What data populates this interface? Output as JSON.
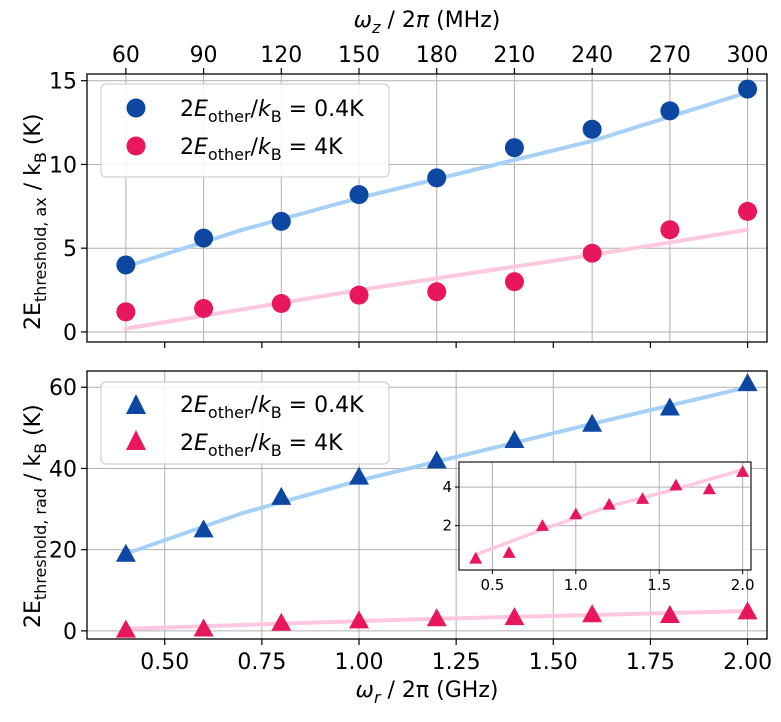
{
  "chart_data": [
    {
      "type": "scatter",
      "panel": "top",
      "x_label_bottom": "ω_r / 2π (GHz)",
      "x_label_top": "ω_z / 2π (MHz)",
      "top_ticks": [
        60,
        90,
        120,
        150,
        180,
        210,
        240,
        270,
        300
      ],
      "ylabel": "2E_threshold,ax / k_B (K)",
      "ylabel_main": "2E",
      "ylabel_sub": "threshold, ax",
      "ylabel_rest": " / k",
      "ylabel_sub2": "B",
      "ylabel_tail": " (K)",
      "xlim": [
        0.3,
        2.05
      ],
      "ylim": [
        -0.6,
        15.4
      ],
      "yticks": [
        0,
        5,
        10,
        15
      ],
      "grid": true,
      "legend_position": "top-left",
      "series": [
        {
          "name": "2E_other/k_B = 0.4K",
          "legend_label": "2Eother/kB = 0.4K",
          "marker": "circle",
          "color": "#0d47a1",
          "x": [
            0.4,
            0.6,
            0.8,
            1.0,
            1.2,
            1.4,
            1.6,
            1.8,
            2.0
          ],
          "values": [
            4.0,
            5.6,
            6.6,
            8.2,
            9.2,
            11.0,
            12.1,
            13.2,
            14.5
          ],
          "fit": {
            "color": "#a6d0f5",
            "x": [
              0.4,
              0.7,
              1.0,
              1.3,
              1.6,
              2.0
            ],
            "values": [
              3.9,
              6.1,
              8.0,
              9.7,
              11.4,
              14.3
            ]
          }
        },
        {
          "name": "2E_other/k_B = 4K",
          "legend_label": "2Eother/kB = 4K",
          "marker": "circle",
          "color": "#e8175d",
          "x": [
            0.4,
            0.6,
            0.8,
            1.0,
            1.2,
            1.4,
            1.6,
            1.8,
            2.0
          ],
          "values": [
            1.2,
            1.4,
            1.7,
            2.2,
            2.4,
            3.0,
            4.7,
            6.1,
            7.2
          ],
          "fit": {
            "color": "#ffc8de",
            "x": [
              0.4,
              1.0,
              1.6,
              2.0
            ],
            "values": [
              0.2,
              2.5,
              4.6,
              6.1
            ]
          }
        }
      ]
    },
    {
      "type": "scatter",
      "panel": "bottom",
      "xlabel": "ω_r / 2π (GHz)",
      "xlabel_parts": {
        "main": "ω",
        "sub": "r",
        "rest": " / 2π (GHz)"
      },
      "ylabel": "2E_threshold,rad / k_B (K)",
      "ylabel_main": "2E",
      "ylabel_sub": "threshold, rad",
      "ylabel_rest": " / k",
      "ylabel_sub2": "B",
      "ylabel_tail": " (K)",
      "xlim": [
        0.3,
        2.05
      ],
      "xticks": [
        "0.50",
        "0.75",
        "1.00",
        "1.25",
        "1.50",
        "1.75",
        "2.00"
      ],
      "ylim": [
        -2,
        64
      ],
      "yticks": [
        0,
        20,
        40,
        60
      ],
      "grid": true,
      "legend_position": "top-left",
      "series": [
        {
          "name": "2E_other/k_B = 0.4K",
          "legend_label": "2Eother/kB = 0.4K",
          "marker": "triangle",
          "color": "#0d47a1",
          "x": [
            0.4,
            0.6,
            0.8,
            1.0,
            1.2,
            1.4,
            1.6,
            1.8,
            2.0
          ],
          "values": [
            19,
            25,
            33,
            38,
            42,
            47,
            51,
            55,
            61
          ],
          "fit": {
            "color": "#a6d0f5",
            "x": [
              0.4,
              0.7,
              1.0,
              1.3,
              1.6,
              2.0
            ],
            "values": [
              19,
              29,
              37,
              44,
              51,
              60
            ]
          }
        },
        {
          "name": "2E_other/k_B = 4K",
          "legend_label": "2Eother/kB = 4K",
          "marker": "triangle",
          "color": "#e8175d",
          "x": [
            0.4,
            0.6,
            0.8,
            1.0,
            1.2,
            1.4,
            1.6,
            1.8,
            2.0
          ],
          "values": [
            0.3,
            0.6,
            2.0,
            2.6,
            3.1,
            3.4,
            4.1,
            3.9,
            4.8
          ],
          "fit": {
            "color": "#ffc8de",
            "x": [
              0.4,
              0.8,
              1.2,
              1.6,
              2.0
            ],
            "values": [
              0.5,
              1.8,
              3.0,
              3.9,
              4.9
            ]
          }
        }
      ],
      "inset": {
        "xlim": [
          0.3,
          2.05
        ],
        "xticks": [
          "0.5",
          "1.0",
          "1.5",
          "2.0"
        ],
        "ylim": [
          -0.3,
          5.3
        ],
        "yticks": [
          2,
          4
        ],
        "grid": true,
        "series_ref": "2E_other/k_B = 4K"
      }
    }
  ]
}
